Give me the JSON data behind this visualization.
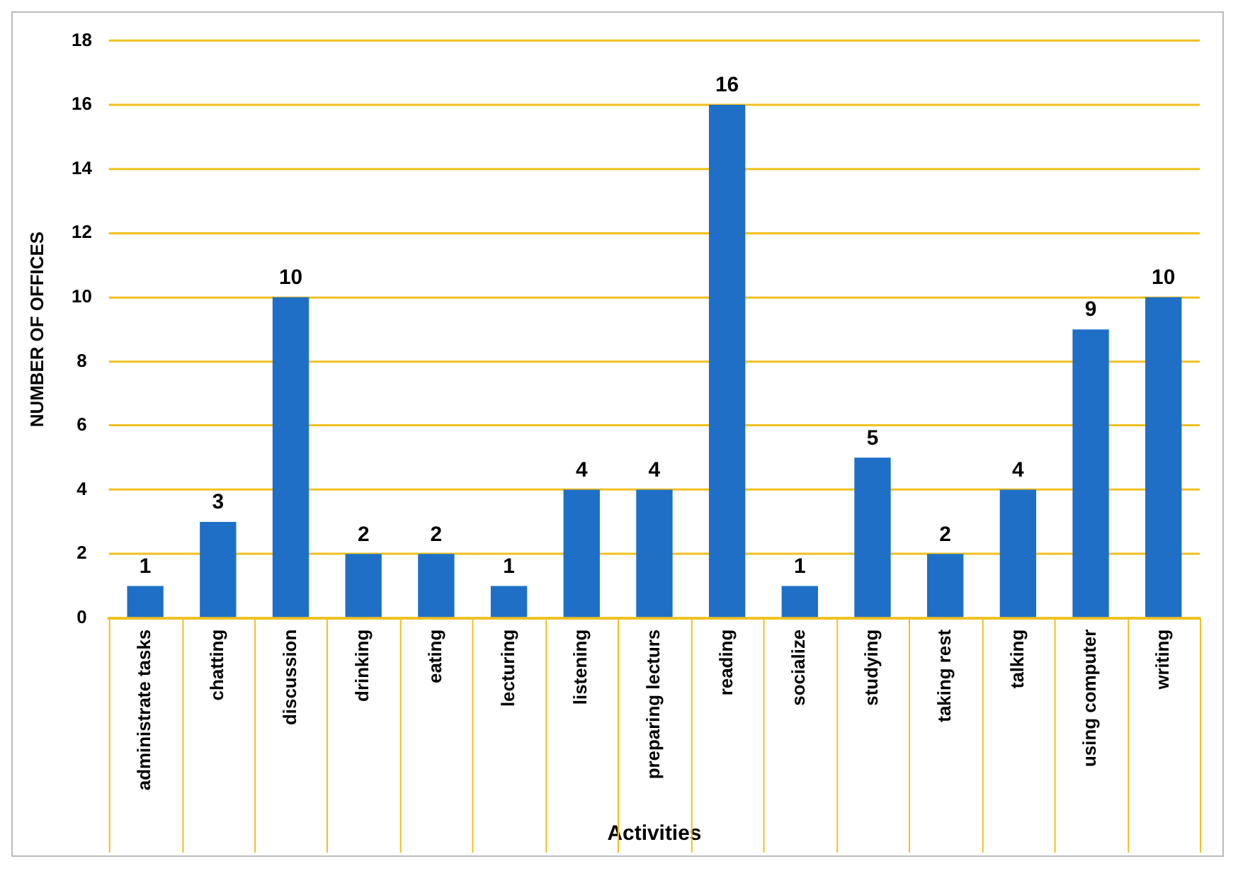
{
  "chart_data": {
    "type": "bar",
    "xlabel": "Activities",
    "ylabel": "NUMBER OF OFFICES",
    "categories": [
      "administrate tasks",
      "chatting",
      "discussion",
      "drinking",
      "eating",
      "lecturing",
      "listening",
      "preparing lecturs",
      "reading",
      "socialize",
      "studying",
      "taking rest",
      "talking",
      "using computer",
      "writing"
    ],
    "values": [
      1,
      3,
      10,
      2,
      2,
      1,
      4,
      4,
      16,
      1,
      5,
      2,
      4,
      9,
      10
    ],
    "color": "#1f6fc6",
    "ylim": [
      0,
      18
    ],
    "yticks": [
      0,
      2,
      4,
      6,
      8,
      10,
      12,
      14,
      16,
      18
    ],
    "grid": "y",
    "data_labels": true,
    "legend": false
  }
}
